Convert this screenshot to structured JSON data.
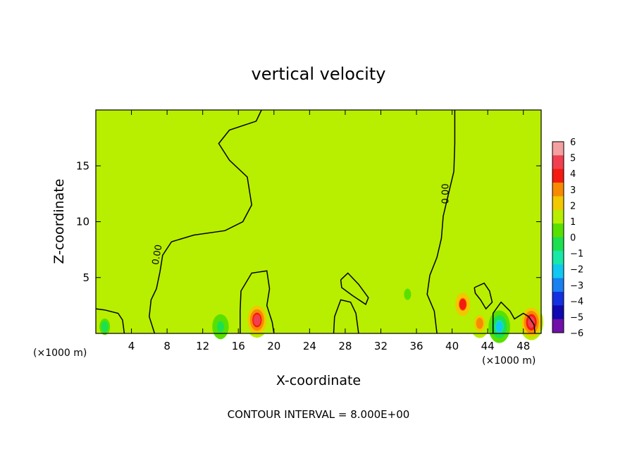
{
  "chart_data": {
    "type": "heatmap",
    "title": "vertical velocity",
    "xlabel": "X-coordinate",
    "ylabel": "Z-coordinate",
    "x_unit_left": "(×1000 m)",
    "x_unit_right": "(×1000 m)",
    "footer": "CONTOUR INTERVAL = 8.000E+00",
    "xlim": [
      0,
      50
    ],
    "ylim": [
      0,
      20
    ],
    "x_ticks": [
      4,
      8,
      12,
      16,
      20,
      24,
      28,
      32,
      36,
      40,
      44,
      48
    ],
    "y_ticks": [
      5,
      10,
      15
    ],
    "colorbar": {
      "levels": [
        6,
        5,
        4,
        3,
        2,
        1,
        0,
        -1,
        -2,
        -3,
        -4,
        -5,
        -6
      ],
      "labels": [
        "6",
        "5",
        "4",
        "3",
        "2",
        "1",
        "0",
        "−1",
        "−2",
        "−3",
        "−4",
        "−5",
        "−6"
      ],
      "colors": [
        "#f4a0a0",
        "#f04050",
        "#f51a10",
        "#f78a00",
        "#f2c800",
        "#b8ee00",
        "#58e000",
        "#1ce050",
        "#18e8a8",
        "#10c8f0",
        "#1880f0",
        "#1530e0",
        "#1008b0",
        "#7010a8"
      ]
    },
    "background_value": 0.3,
    "hotspots": [
      {
        "x": 5.0,
        "z": 1.4,
        "w": 0.4
      },
      {
        "x": 18.1,
        "z": 1.2,
        "w": 4.5
      },
      {
        "x": 41.2,
        "z": 2.6,
        "w": 3.2
      },
      {
        "x": 43.1,
        "z": 0.9,
        "w": 2.4
      },
      {
        "x": 48.9,
        "z": 1.0,
        "w": 4.8
      },
      {
        "x": 14.0,
        "z": 0.6,
        "w": -1.8
      },
      {
        "x": 45.3,
        "z": 0.6,
        "w": -3.2
      },
      {
        "x": 35.0,
        "z": 3.5,
        "w": -0.9
      },
      {
        "x": 1.0,
        "z": 0.6,
        "w": -1.2
      }
    ],
    "contour_label": "0.00",
    "contours": [
      {
        "label": "0.00",
        "points": [
          [
            6.6,
            0
          ],
          [
            6.0,
            1.5
          ],
          [
            6.2,
            3.0
          ],
          [
            6.8,
            4.0
          ],
          [
            7.2,
            5.5
          ],
          [
            7.5,
            7.0
          ],
          [
            8.5,
            8.2
          ],
          [
            11.0,
            8.8
          ],
          [
            14.5,
            9.2
          ],
          [
            16.5,
            10.0
          ],
          [
            17.5,
            11.5
          ],
          [
            17.0,
            14.0
          ],
          [
            15.0,
            15.5
          ],
          [
            13.8,
            17.0
          ],
          [
            15.0,
            18.2
          ],
          [
            18.0,
            19.0
          ],
          [
            18.6,
            20.0
          ]
        ]
      },
      {
        "label": "0.00",
        "points": [
          [
            40.3,
            20.0
          ],
          [
            40.3,
            17.0
          ],
          [
            40.2,
            14.5
          ],
          [
            39.6,
            12.5
          ],
          [
            39.0,
            10.5
          ],
          [
            38.8,
            8.5
          ],
          [
            38.3,
            6.8
          ],
          [
            37.5,
            5.2
          ],
          [
            37.2,
            3.5
          ],
          [
            38.0,
            2.0
          ],
          [
            38.3,
            0
          ]
        ]
      },
      {
        "label": "",
        "points": [
          [
            16.2,
            0
          ],
          [
            16.2,
            2.0
          ],
          [
            16.3,
            3.8
          ],
          [
            17.5,
            5.4
          ],
          [
            19.2,
            5.6
          ],
          [
            19.5,
            4.0
          ],
          [
            19.2,
            2.5
          ],
          [
            19.8,
            1.0
          ],
          [
            20.0,
            0
          ]
        ]
      },
      {
        "label": "",
        "points": [
          [
            0,
            2.2
          ],
          [
            1.0,
            2.1
          ],
          [
            2.5,
            1.8
          ],
          [
            3.0,
            1.2
          ],
          [
            3.2,
            0
          ]
        ]
      },
      {
        "label": "",
        "points": [
          [
            26.7,
            0
          ],
          [
            26.8,
            1.5
          ],
          [
            27.5,
            3.0
          ],
          [
            28.6,
            2.8
          ],
          [
            29.2,
            1.8
          ],
          [
            29.5,
            0
          ]
        ]
      },
      {
        "label": "",
        "points": [
          [
            27.5,
            4.8
          ],
          [
            28.3,
            5.4
          ],
          [
            29.5,
            4.4
          ],
          [
            30.6,
            3.2
          ],
          [
            30.3,
            2.6
          ],
          [
            28.8,
            3.4
          ],
          [
            27.6,
            4.1
          ],
          [
            27.5,
            4.8
          ]
        ]
      },
      {
        "label": "",
        "points": [
          [
            42.5,
            4.1
          ],
          [
            43.6,
            4.5
          ],
          [
            44.2,
            3.8
          ],
          [
            44.5,
            2.8
          ],
          [
            43.8,
            2.2
          ],
          [
            43.2,
            3.0
          ],
          [
            42.6,
            3.6
          ],
          [
            42.5,
            4.1
          ]
        ]
      },
      {
        "label": "",
        "points": [
          [
            44.6,
            0
          ],
          [
            44.6,
            1.8
          ],
          [
            45.5,
            2.8
          ],
          [
            46.5,
            2.0
          ],
          [
            47.0,
            1.3
          ],
          [
            48.0,
            1.8
          ],
          [
            48.6,
            1.5
          ],
          [
            49.2,
            0.8
          ],
          [
            49.3,
            0
          ]
        ]
      }
    ]
  }
}
